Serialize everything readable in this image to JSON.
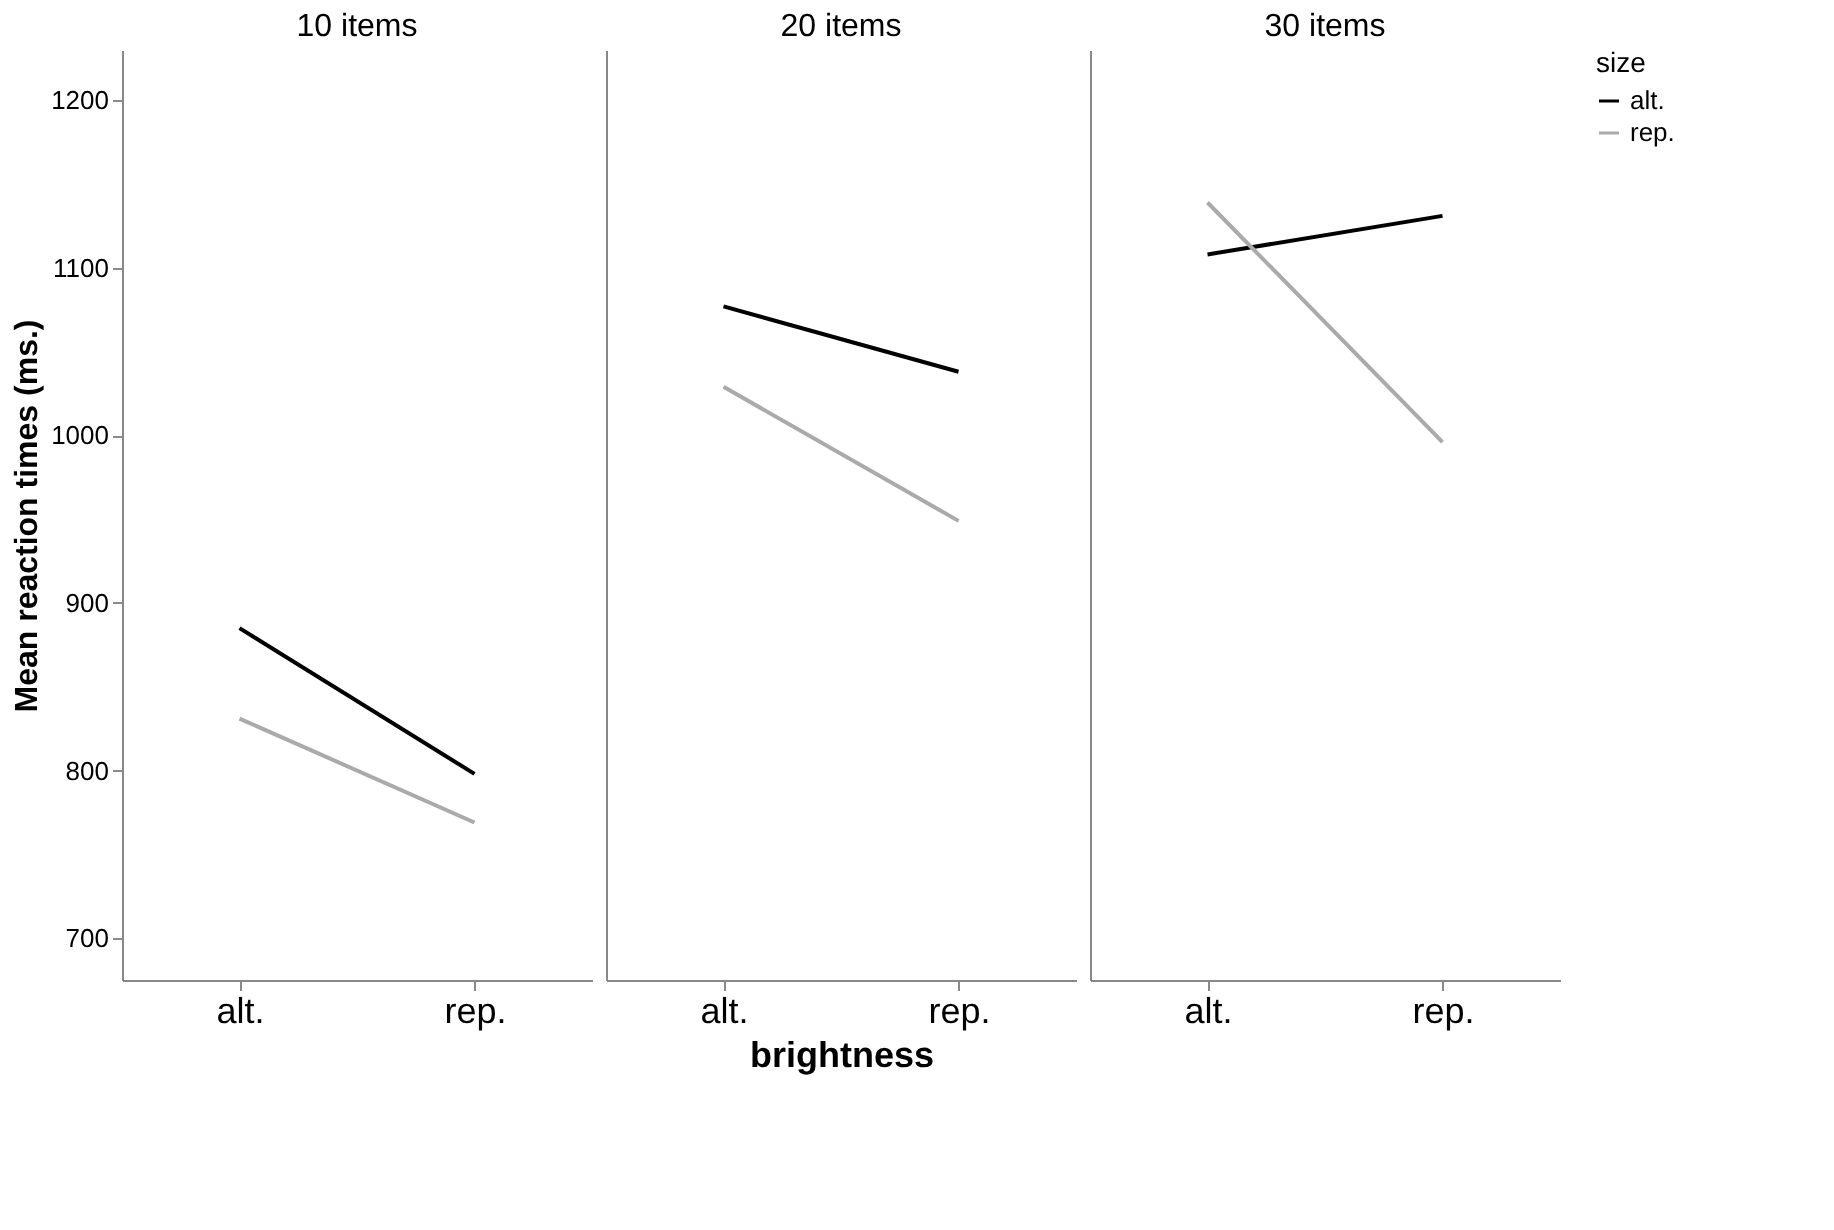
{
  "chart_data": [
    {
      "type": "line",
      "title": "10 items",
      "ylabel": "Mean reaction times (ms.)",
      "categories": [
        "alt.",
        "rep."
      ],
      "ylim": [
        675,
        1230
      ],
      "yticks": [
        700,
        800,
        900,
        1000,
        1100,
        1200
      ],
      "grid": false,
      "legend": "right",
      "series": [
        {
          "name": "alt.",
          "color": "#000000",
          "values": [
            885,
            798
          ]
        },
        {
          "name": "rep.",
          "color": "#aaaaaa",
          "values": [
            831,
            769
          ]
        }
      ]
    },
    {
      "type": "line",
      "title": "20 items",
      "xlabel": "brightness",
      "categories": [
        "alt.",
        "rep."
      ],
      "ylim": [
        675,
        1230
      ],
      "tick_labels": "x",
      "grid": false,
      "legend": "right",
      "series": [
        {
          "name": "alt.",
          "color": "#000000",
          "values": [
            1077,
            1038
          ]
        },
        {
          "name": "rep.",
          "color": "#aaaaaa",
          "values": [
            1029,
            949
          ]
        }
      ]
    },
    {
      "type": "line",
      "title": "30 items",
      "categories": [
        "alt.",
        "rep."
      ],
      "ylim": [
        675,
        1230
      ],
      "tick_labels": "x",
      "grid": false,
      "legend": "right",
      "legend_title": "size",
      "series": [
        {
          "name": "alt.",
          "color": "#000000",
          "values": [
            1108,
            1131
          ]
        },
        {
          "name": "rep.",
          "color": "#aaaaaa",
          "values": [
            1139,
            996
          ]
        }
      ]
    }
  ]
}
